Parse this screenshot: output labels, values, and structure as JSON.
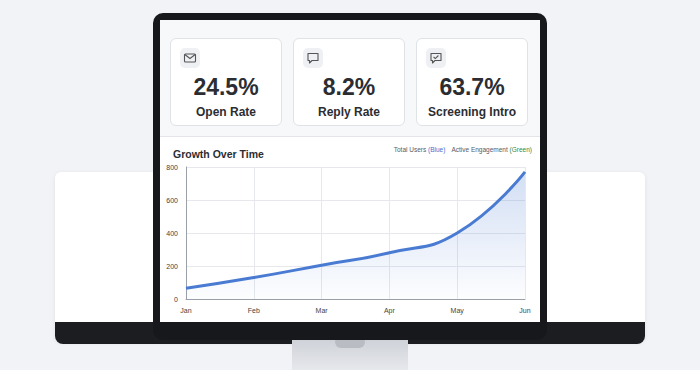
{
  "cards": [
    {
      "value": "24.5%",
      "label": "Open Rate"
    },
    {
      "value": "8.2%",
      "label": "Reply Rate"
    },
    {
      "value": "63.7%",
      "label": "Screening Intro"
    }
  ],
  "legend_text": [
    {
      "text": "Total Users",
      "color_word": "(Blue)",
      "color": "#3f6fd1"
    },
    {
      "text": "Active Engagement",
      "color_word": "(Green)",
      "color": "#2e8b4a"
    }
  ],
  "chart_data": {
    "type": "line",
    "title": "Growth Over Time",
    "categories": [
      "Jan",
      "Feb",
      "Mar",
      "Apr",
      "May",
      "Jun"
    ],
    "values": [
      65,
      130,
      205,
      280,
      400,
      770
    ],
    "color": "#4a7bd3",
    "ylim": [
      0,
      800
    ],
    "yticks": [
      0,
      200,
      400,
      600,
      800
    ],
    "grid": true
  }
}
